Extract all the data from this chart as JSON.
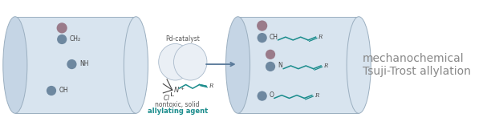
{
  "bg_color": "#ffffff",
  "cylinder_fill": "#d8e4ef",
  "cylinder_edge": "#9bafc0",
  "cylinder_rim_fill": "#c5d5e5",
  "dot_blue": "#6e88a0",
  "dot_mauve": "#9a7b8a",
  "teal": "#1a8c8c",
  "arrow_color": "#5a7a9a",
  "ball_color": "#eaeff5",
  "ball_edge": "#aabacb",
  "text_dark": "#444444",
  "text_gray": "#888888",
  "reagent_line1": "nontoxic, solid",
  "reagent_line2": "allylating agent",
  "catalyst_label": "Pd-catalyst",
  "title_line1": "mechanochemical",
  "title_line2": "Tsuji-Trost allylation"
}
